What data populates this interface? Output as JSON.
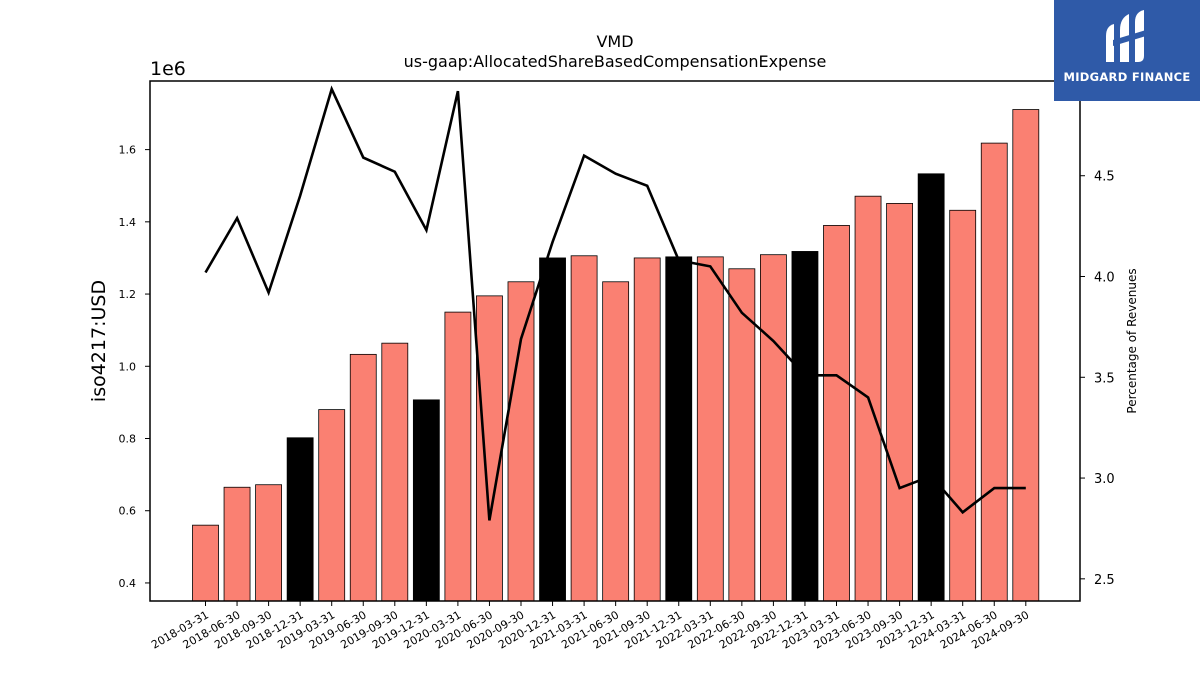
{
  "header": {
    "title": "VMD",
    "subtitle": "us-gaap:AllocatedShareBasedCompensationExpense"
  },
  "logo": {
    "text": "MIDGARD FINANCE",
    "icon": "midgard-logo-icon",
    "bg_color": "#2f5aa8"
  },
  "chart_data": {
    "type": "bar",
    "title": "VMD",
    "subtitle": "us-gaap:AllocatedShareBasedCompensationExpense",
    "ylabel": "iso4217:USD",
    "y_offset_label": "1e6",
    "y2label": "Percentage of Revenues",
    "ylim": [
      350000,
      1790000
    ],
    "y2lim": [
      2.39,
      4.97
    ],
    "yticks": [
      0.4,
      0.6,
      0.8,
      1.0,
      1.2,
      1.4,
      1.6
    ],
    "y2ticks": [
      2.5,
      3.0,
      3.5,
      4.0,
      4.5
    ],
    "categories": [
      "2018-03-31",
      "2018-06-30",
      "2018-09-30",
      "2018-12-31",
      "2019-03-31",
      "2019-06-30",
      "2019-09-30",
      "2019-12-31",
      "2020-03-31",
      "2020-06-30",
      "2020-09-30",
      "2020-12-31",
      "2021-03-31",
      "2021-06-30",
      "2021-09-30",
      "2021-12-31",
      "2022-03-31",
      "2022-06-30",
      "2022-09-30",
      "2022-12-31",
      "2023-03-31",
      "2023-06-30",
      "2023-09-30",
      "2023-12-31",
      "2024-03-31",
      "2024-06-30",
      "2024-09-30"
    ],
    "series": [
      {
        "kind": "bar",
        "values": [
          560000,
          665000,
          672000,
          802000,
          880000,
          1033000,
          1064000,
          907000,
          1150000,
          1195000,
          1234000,
          1300000,
          1306000,
          1234000,
          1300000,
          1303000,
          1303000,
          1270000,
          1309000,
          1318000,
          1390000,
          1471000,
          1451000,
          1533000,
          1432000,
          1618000,
          1711000
        ],
        "colors": [
          "#fa8072",
          "#fa8072",
          "#fa8072",
          "#000000",
          "#fa8072",
          "#fa8072",
          "#fa8072",
          "#000000",
          "#fa8072",
          "#fa8072",
          "#fa8072",
          "#000000",
          "#fa8072",
          "#fa8072",
          "#fa8072",
          "#000000",
          "#fa8072",
          "#fa8072",
          "#fa8072",
          "#000000",
          "#fa8072",
          "#fa8072",
          "#fa8072",
          "#000000",
          "#fa8072",
          "#fa8072",
          "#fa8072"
        ]
      },
      {
        "kind": "line",
        "axis": "y2",
        "color": "#000000",
        "values": [
          4.02,
          4.29,
          3.92,
          4.4,
          4.93,
          4.59,
          4.52,
          4.23,
          4.92,
          2.79,
          3.69,
          4.17,
          4.6,
          4.51,
          4.45,
          4.08,
          4.05,
          3.82,
          3.68,
          3.51,
          3.51,
          3.4,
          2.95,
          3.01,
          2.83,
          2.95,
          2.95
        ]
      }
    ],
    "colors": {
      "bar": "#fa8072",
      "bar_q4": "#000000",
      "line": "#000000"
    },
    "grid": false,
    "legend": "none"
  }
}
